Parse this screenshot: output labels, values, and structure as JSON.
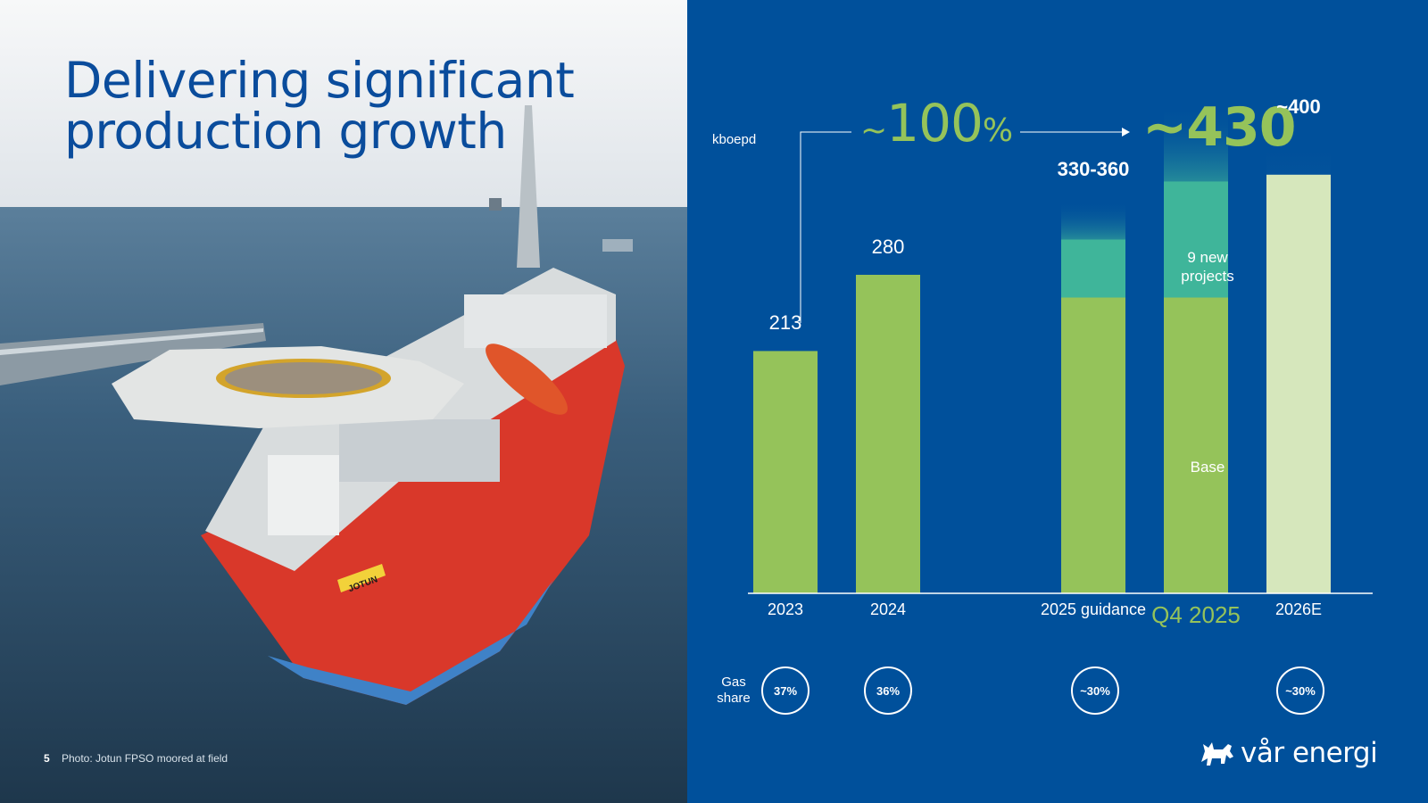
{
  "title": "Delivering significant production growth",
  "page_number": "5",
  "photo_caption": "Photo: Jotun FPSO moored at field",
  "ship_name": "JOTUN",
  "brand": {
    "name": "vår energi"
  },
  "colors": {
    "panel": "#00509b",
    "base": "#95c35a",
    "new_projects": "#3fb59a",
    "forecast": "#d6e7bc",
    "text": "#ffffff"
  },
  "chart_data": {
    "type": "bar",
    "unit": "kboepd",
    "categories": [
      "2023",
      "2024",
      "2025 guidance",
      "Q4 2025",
      "2026E"
    ],
    "bar_labels": [
      "213",
      "280",
      "330-360",
      "",
      "~400"
    ],
    "series": [
      {
        "name": "Base",
        "values": [
          213,
          280,
          260,
          260,
          0
        ]
      },
      {
        "name": "9 new projects",
        "values": [
          0,
          0,
          85,
          170,
          0
        ]
      },
      {
        "name": "",
        "values": [
          0,
          0,
          0,
          0,
          400
        ]
      }
    ],
    "growth_annotation": {
      "prefix": "~",
      "value": "100",
      "suffix": "%"
    },
    "q4_annotation": "~430",
    "gas_share": {
      "label": "Gas share",
      "values": [
        "37%",
        "36%",
        "~30%",
        "",
        "~30%"
      ]
    },
    "ylim": [
      0,
      450
    ],
    "grid": false
  }
}
